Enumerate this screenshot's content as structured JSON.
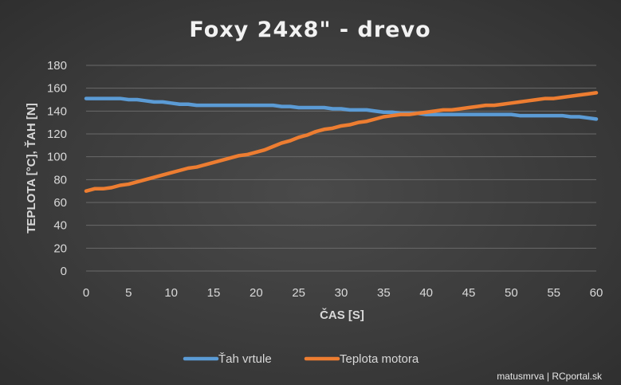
{
  "chart_data": {
    "type": "line",
    "title": "Foxy 24x8\" - drevo",
    "xlabel": "ČAS [S]",
    "ylabel": "TEPLOTA [°C], ŤAH [N]",
    "xlim": [
      0,
      60
    ],
    "ylim": [
      0,
      180
    ],
    "x_ticks": [
      0,
      5,
      10,
      15,
      20,
      25,
      30,
      35,
      40,
      45,
      50,
      55,
      60
    ],
    "y_ticks": [
      0,
      20,
      40,
      60,
      80,
      100,
      120,
      140,
      160,
      180
    ],
    "grid": true,
    "legend_position": "bottom",
    "x": [
      0,
      1,
      2,
      3,
      4,
      5,
      6,
      7,
      8,
      9,
      10,
      11,
      12,
      13,
      14,
      15,
      16,
      17,
      18,
      19,
      20,
      21,
      22,
      23,
      24,
      25,
      26,
      27,
      28,
      29,
      30,
      31,
      32,
      33,
      34,
      35,
      36,
      37,
      38,
      39,
      40,
      41,
      42,
      43,
      44,
      45,
      46,
      47,
      48,
      49,
      50,
      51,
      52,
      53,
      54,
      55,
      56,
      57,
      58,
      59,
      60
    ],
    "series": [
      {
        "name": "Ťah vrtule",
        "color": "#5b9bd5",
        "values": [
          151,
          151,
          151,
          151,
          151,
          150,
          150,
          149,
          148,
          148,
          147,
          146,
          146,
          145,
          145,
          145,
          145,
          145,
          145,
          145,
          145,
          145,
          145,
          144,
          144,
          143,
          143,
          143,
          143,
          142,
          142,
          141,
          141,
          141,
          140,
          139,
          139,
          138,
          138,
          138,
          137,
          137,
          137,
          137,
          137,
          137,
          137,
          137,
          137,
          137,
          137,
          136,
          136,
          136,
          136,
          136,
          136,
          135,
          135,
          134,
          133
        ]
      },
      {
        "name": "Teplota motora",
        "color": "#ed7d31",
        "values": [
          70,
          72,
          72,
          73,
          75,
          76,
          78,
          80,
          82,
          84,
          86,
          88,
          90,
          91,
          93,
          95,
          97,
          99,
          101,
          102,
          104,
          106,
          109,
          112,
          114,
          117,
          119,
          122,
          124,
          125,
          127,
          128,
          130,
          131,
          133,
          135,
          136,
          137,
          137,
          138,
          139,
          140,
          141,
          141,
          142,
          143,
          144,
          145,
          145,
          146,
          147,
          148,
          149,
          150,
          151,
          151,
          152,
          153,
          154,
          155,
          156
        ]
      }
    ]
  },
  "footer": {
    "credit": "matusmrva | RCportal.sk"
  }
}
